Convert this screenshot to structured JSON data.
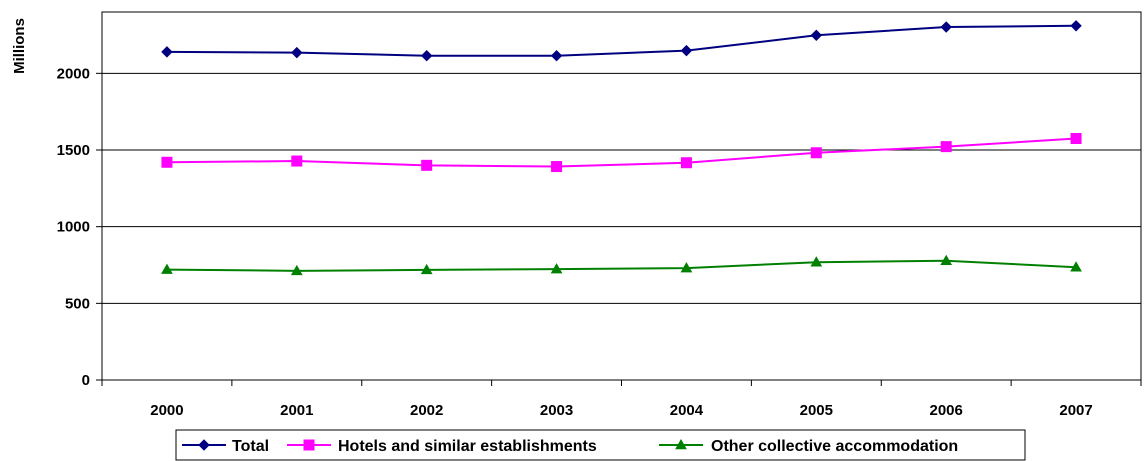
{
  "chart_data": {
    "type": "line",
    "title": "",
    "xlabel": "",
    "ylabel": "Millions",
    "categories": [
      "2000",
      "2001",
      "2002",
      "2003",
      "2004",
      "2005",
      "2006",
      "2007"
    ],
    "ylim": [
      0,
      2400
    ],
    "yticks": [
      "0",
      "500",
      "1000",
      "1500",
      "2000"
    ],
    "ytick_values": [
      0,
      500,
      1000,
      1500,
      2000
    ],
    "grid": "horizontal",
    "legend_position": "bottom",
    "series": [
      {
        "name": "Total",
        "values": [
          2140,
          2135,
          2115,
          2115,
          2148,
          2248,
          2302,
          2310
        ],
        "color": "#000080",
        "marker": "diamond"
      },
      {
        "name": "Hotels and similar establishments",
        "values": [
          1420,
          1428,
          1400,
          1392,
          1417,
          1482,
          1522,
          1575
        ],
        "color": "#FF00FF",
        "marker": "square"
      },
      {
        "name": "Other collective accommodation",
        "values": [
          720,
          712,
          718,
          723,
          730,
          768,
          778,
          735
        ],
        "color": "#008000",
        "marker": "triangle"
      }
    ]
  }
}
